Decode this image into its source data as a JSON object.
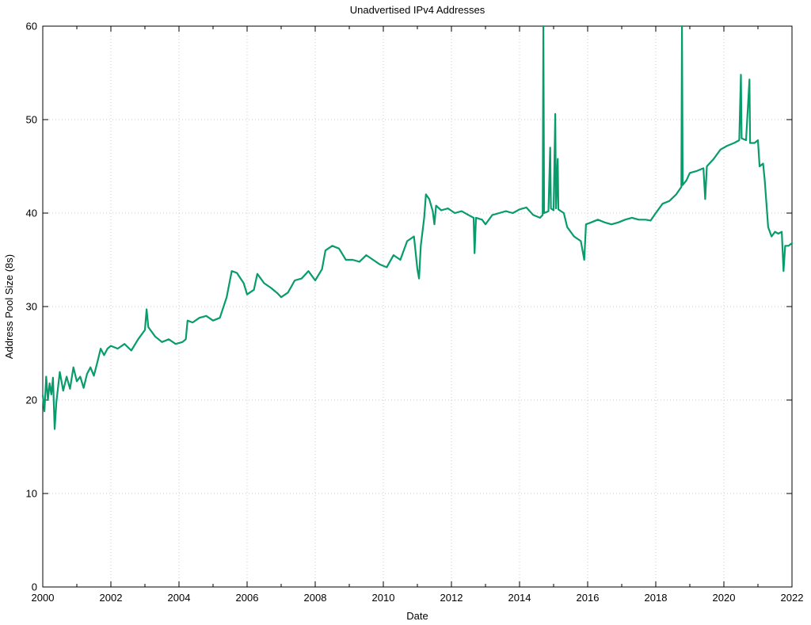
{
  "chart_data": {
    "type": "line",
    "title": "Unadvertised IPv4 Addresses",
    "xlabel": "Date",
    "ylabel": "Address Pool Size (8s)",
    "xlim": [
      2000,
      2022
    ],
    "ylim": [
      0,
      60
    ],
    "x_ticks": [
      "2000",
      "2002",
      "2004",
      "2006",
      "2008",
      "2010",
      "2012",
      "2014",
      "2016",
      "2018",
      "2020",
      "2022"
    ],
    "y_ticks": [
      "0",
      "10",
      "20",
      "30",
      "40",
      "50",
      "60"
    ],
    "grid": true,
    "legend": "none",
    "series_color": "#089c6c",
    "series": [
      {
        "values": [
          [
            2000.0,
            20.5
          ],
          [
            2000.05,
            18.8
          ],
          [
            2000.1,
            22.5
          ],
          [
            2000.15,
            20.0
          ],
          [
            2000.2,
            21.8
          ],
          [
            2000.25,
            20.6
          ],
          [
            2000.3,
            22.4
          ],
          [
            2000.35,
            16.9
          ],
          [
            2000.4,
            19.8
          ],
          [
            2000.5,
            23.0
          ],
          [
            2000.6,
            21.0
          ],
          [
            2000.7,
            22.5
          ],
          [
            2000.8,
            21.2
          ],
          [
            2000.9,
            23.5
          ],
          [
            2001.0,
            22.0
          ],
          [
            2001.1,
            22.5
          ],
          [
            2001.2,
            21.3
          ],
          [
            2001.3,
            22.8
          ],
          [
            2001.4,
            23.5
          ],
          [
            2001.5,
            22.6
          ],
          [
            2001.6,
            24.0
          ],
          [
            2001.7,
            25.5
          ],
          [
            2001.8,
            24.8
          ],
          [
            2001.9,
            25.5
          ],
          [
            2002.0,
            25.8
          ],
          [
            2002.2,
            25.5
          ],
          [
            2002.4,
            26.0
          ],
          [
            2002.6,
            25.3
          ],
          [
            2002.8,
            26.5
          ],
          [
            2003.0,
            27.5
          ],
          [
            2003.05,
            29.7
          ],
          [
            2003.1,
            27.8
          ],
          [
            2003.3,
            26.8
          ],
          [
            2003.5,
            26.2
          ],
          [
            2003.7,
            26.5
          ],
          [
            2003.9,
            26.0
          ],
          [
            2004.1,
            26.2
          ],
          [
            2004.2,
            26.5
          ],
          [
            2004.25,
            28.5
          ],
          [
            2004.4,
            28.3
          ],
          [
            2004.6,
            28.8
          ],
          [
            2004.8,
            29.0
          ],
          [
            2005.0,
            28.5
          ],
          [
            2005.2,
            28.8
          ],
          [
            2005.4,
            31.0
          ],
          [
            2005.55,
            33.8
          ],
          [
            2005.7,
            33.6
          ],
          [
            2005.9,
            32.5
          ],
          [
            2006.0,
            31.3
          ],
          [
            2006.2,
            31.8
          ],
          [
            2006.3,
            33.5
          ],
          [
            2006.5,
            32.5
          ],
          [
            2006.7,
            32.0
          ],
          [
            2006.9,
            31.4
          ],
          [
            2007.0,
            31.0
          ],
          [
            2007.2,
            31.5
          ],
          [
            2007.4,
            32.8
          ],
          [
            2007.6,
            33.0
          ],
          [
            2007.8,
            33.8
          ],
          [
            2008.0,
            32.8
          ],
          [
            2008.2,
            34.0
          ],
          [
            2008.3,
            36.0
          ],
          [
            2008.5,
            36.5
          ],
          [
            2008.7,
            36.2
          ],
          [
            2008.9,
            35.0
          ],
          [
            2009.1,
            35.0
          ],
          [
            2009.3,
            34.8
          ],
          [
            2009.5,
            35.5
          ],
          [
            2009.7,
            35.0
          ],
          [
            2009.9,
            34.5
          ],
          [
            2010.1,
            34.2
          ],
          [
            2010.3,
            35.5
          ],
          [
            2010.5,
            35.0
          ],
          [
            2010.7,
            37.0
          ],
          [
            2010.9,
            37.5
          ],
          [
            2011.0,
            34.0
          ],
          [
            2011.05,
            33.0
          ],
          [
            2011.1,
            36.5
          ],
          [
            2011.2,
            39.5
          ],
          [
            2011.25,
            42.0
          ],
          [
            2011.35,
            41.5
          ],
          [
            2011.45,
            40.2
          ],
          [
            2011.5,
            38.8
          ],
          [
            2011.55,
            40.8
          ],
          [
            2011.7,
            40.3
          ],
          [
            2011.9,
            40.5
          ],
          [
            2012.1,
            40.0
          ],
          [
            2012.3,
            40.2
          ],
          [
            2012.5,
            39.8
          ],
          [
            2012.65,
            39.5
          ],
          [
            2012.68,
            35.7
          ],
          [
            2012.72,
            39.5
          ],
          [
            2012.9,
            39.3
          ],
          [
            2013.0,
            38.8
          ],
          [
            2013.2,
            39.8
          ],
          [
            2013.4,
            40.0
          ],
          [
            2013.6,
            40.2
          ],
          [
            2013.8,
            40.0
          ],
          [
            2014.0,
            40.4
          ],
          [
            2014.2,
            40.6
          ],
          [
            2014.4,
            39.8
          ],
          [
            2014.6,
            39.5
          ],
          [
            2014.68,
            39.8
          ],
          [
            2014.7,
            60.0
          ],
          [
            2014.72,
            40.0
          ],
          [
            2014.85,
            40.2
          ],
          [
            2014.9,
            47.0
          ],
          [
            2014.92,
            40.5
          ],
          [
            2015.0,
            40.3
          ],
          [
            2015.05,
            50.6
          ],
          [
            2015.07,
            40.5
          ],
          [
            2015.12,
            45.8
          ],
          [
            2015.14,
            40.4
          ],
          [
            2015.3,
            40.0
          ],
          [
            2015.4,
            38.5
          ],
          [
            2015.5,
            38.0
          ],
          [
            2015.6,
            37.5
          ],
          [
            2015.8,
            37.0
          ],
          [
            2015.9,
            35.0
          ],
          [
            2015.95,
            38.8
          ],
          [
            2016.1,
            39.0
          ],
          [
            2016.3,
            39.3
          ],
          [
            2016.5,
            39.0
          ],
          [
            2016.7,
            38.8
          ],
          [
            2016.9,
            39.0
          ],
          [
            2017.1,
            39.3
          ],
          [
            2017.3,
            39.5
          ],
          [
            2017.5,
            39.3
          ],
          [
            2017.7,
            39.3
          ],
          [
            2017.85,
            39.2
          ],
          [
            2018.0,
            40.0
          ],
          [
            2018.2,
            41.0
          ],
          [
            2018.4,
            41.3
          ],
          [
            2018.6,
            42.0
          ],
          [
            2018.75,
            42.8
          ],
          [
            2018.77,
            60.0
          ],
          [
            2018.79,
            43.0
          ],
          [
            2018.9,
            43.5
          ],
          [
            2019.0,
            44.3
          ],
          [
            2019.2,
            44.5
          ],
          [
            2019.4,
            44.8
          ],
          [
            2019.45,
            41.5
          ],
          [
            2019.5,
            45.0
          ],
          [
            2019.7,
            45.8
          ],
          [
            2019.9,
            46.8
          ],
          [
            2020.1,
            47.2
          ],
          [
            2020.3,
            47.5
          ],
          [
            2020.45,
            47.8
          ],
          [
            2020.5,
            54.8
          ],
          [
            2020.52,
            48.0
          ],
          [
            2020.65,
            47.8
          ],
          [
            2020.75,
            54.3
          ],
          [
            2020.77,
            47.5
          ],
          [
            2020.9,
            47.5
          ],
          [
            2021.0,
            47.8
          ],
          [
            2021.05,
            45.0
          ],
          [
            2021.15,
            45.3
          ],
          [
            2021.2,
            43.5
          ],
          [
            2021.3,
            38.5
          ],
          [
            2021.4,
            37.5
          ],
          [
            2021.5,
            38.0
          ],
          [
            2021.6,
            37.8
          ],
          [
            2021.7,
            38.0
          ],
          [
            2021.75,
            33.8
          ],
          [
            2021.8,
            36.5
          ],
          [
            2021.9,
            36.5
          ],
          [
            2022.0,
            36.8
          ]
        ]
      }
    ]
  }
}
